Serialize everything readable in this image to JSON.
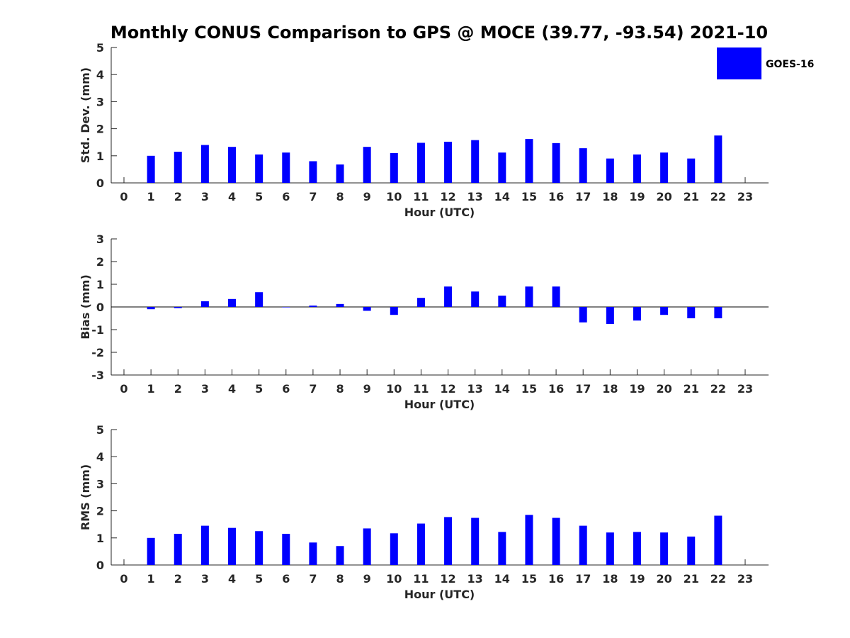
{
  "title": "Monthly CONUS Comparison to GPS @ MOCE (39.77, -93.54) 2021-10",
  "legend": {
    "label": "GOES-16",
    "color": "#0000ff",
    "position": "top-right"
  },
  "chart_data": [
    {
      "type": "bar",
      "xlabel": "Hour (UTC)",
      "ylabel": "Std. Dev. (mm)",
      "ylim": [
        0,
        5
      ],
      "yticks": [
        0,
        1,
        2,
        3,
        4,
        5
      ],
      "categories": [
        "0",
        "1",
        "2",
        "3",
        "4",
        "5",
        "6",
        "7",
        "8",
        "9",
        "10",
        "11",
        "12",
        "13",
        "14",
        "15",
        "16",
        "17",
        "18",
        "19",
        "20",
        "21",
        "22",
        "23"
      ],
      "series": [
        {
          "name": "GOES-16",
          "color": "#0000ff",
          "values": [
            null,
            1.0,
            1.15,
            1.4,
            1.33,
            1.05,
            1.12,
            0.8,
            0.68,
            1.33,
            1.1,
            1.48,
            1.52,
            1.58,
            1.12,
            1.62,
            1.47,
            1.28,
            0.9,
            1.05,
            1.12,
            0.9,
            1.75,
            null
          ]
        }
      ],
      "grid": false
    },
    {
      "type": "bar",
      "xlabel": "Hour (UTC)",
      "ylabel": "Bias (mm)",
      "ylim": [
        -3,
        3
      ],
      "yticks": [
        -3,
        -2,
        -1,
        0,
        1,
        2,
        3
      ],
      "categories": [
        "0",
        "1",
        "2",
        "3",
        "4",
        "5",
        "6",
        "7",
        "8",
        "9",
        "10",
        "11",
        "12",
        "13",
        "14",
        "15",
        "16",
        "17",
        "18",
        "19",
        "20",
        "21",
        "22",
        "23"
      ],
      "series": [
        {
          "name": "GOES-16",
          "color": "#0000ff",
          "values": [
            null,
            -0.1,
            -0.05,
            0.25,
            0.35,
            0.65,
            0.0,
            0.06,
            0.13,
            -0.17,
            -0.35,
            0.4,
            0.9,
            0.68,
            0.5,
            0.9,
            0.9,
            -0.68,
            -0.75,
            -0.6,
            -0.35,
            -0.5,
            -0.5,
            null
          ]
        }
      ],
      "grid": false
    },
    {
      "type": "bar",
      "xlabel": "Hour (UTC)",
      "ylabel": "RMS (mm)",
      "ylim": [
        0,
        5
      ],
      "yticks": [
        0,
        1,
        2,
        3,
        4,
        5
      ],
      "categories": [
        "0",
        "1",
        "2",
        "3",
        "4",
        "5",
        "6",
        "7",
        "8",
        "9",
        "10",
        "11",
        "12",
        "13",
        "14",
        "15",
        "16",
        "17",
        "18",
        "19",
        "20",
        "21",
        "22",
        "23"
      ],
      "series": [
        {
          "name": "GOES-16",
          "color": "#0000ff",
          "values": [
            null,
            1.0,
            1.15,
            1.45,
            1.37,
            1.25,
            1.15,
            0.83,
            0.7,
            1.35,
            1.17,
            1.53,
            1.77,
            1.74,
            1.22,
            1.85,
            1.74,
            1.45,
            1.2,
            1.22,
            1.2,
            1.05,
            1.82,
            null
          ]
        }
      ],
      "grid": false
    }
  ]
}
